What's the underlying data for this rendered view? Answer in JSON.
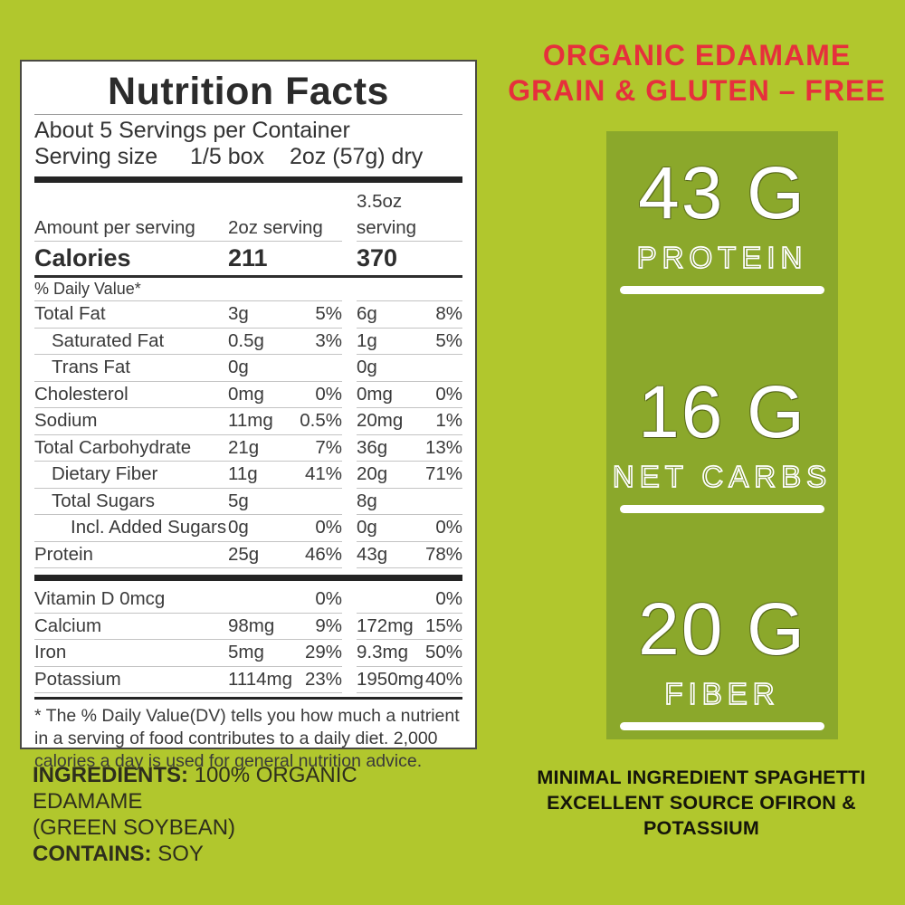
{
  "colors": {
    "bg": "#b1c72d",
    "box": "#8ba82b",
    "red": "#e6303c"
  },
  "nutrition_panel": {
    "title": "Nutrition Facts",
    "servings_line": "About 5 Servings per Container",
    "serving_size_label": "Serving size",
    "serving_size_qty": "1/5 box",
    "serving_size_weight": "2oz (57g) dry",
    "col_headers": [
      "Amount per serving",
      "2oz serving",
      "3.5oz serving"
    ],
    "calories": {
      "label": "Calories",
      "v1": "211",
      "v2": "370"
    },
    "daily_value_note": "% Daily Value*",
    "rows": [
      {
        "label": "Total Fat",
        "indent": 0,
        "cells": [
          "3g",
          "5%",
          "6g",
          "8%"
        ]
      },
      {
        "label": "Saturated Fat",
        "indent": 1,
        "cells": [
          "0.5g",
          "3%",
          "1g",
          "5%"
        ]
      },
      {
        "label": "Trans Fat",
        "indent": 1,
        "cells": [
          "0g",
          "",
          "0g",
          ""
        ]
      },
      {
        "label": "Cholesterol",
        "indent": 0,
        "cells": [
          "0mg",
          "0%",
          "0mg",
          "0%"
        ]
      },
      {
        "label": "Sodium",
        "indent": 0,
        "cells": [
          "11mg",
          "0.5%",
          "20mg",
          "1%"
        ]
      },
      {
        "label": "Total Carbohydrate",
        "indent": 0,
        "cells": [
          "21g",
          "7%",
          "36g",
          "13%"
        ]
      },
      {
        "label": "Dietary Fiber",
        "indent": 1,
        "cells": [
          "11g",
          "41%",
          "20g",
          "71%"
        ]
      },
      {
        "label": "Total Sugars",
        "indent": 1,
        "cells": [
          "5g",
          "",
          "8g",
          ""
        ]
      },
      {
        "label": "Incl. Added Sugars",
        "indent": 2,
        "cells": [
          "0g",
          "0%",
          "0g",
          "0%"
        ]
      },
      {
        "label": "Protein",
        "indent": 0,
        "cells": [
          "25g",
          "46%",
          "43g",
          "78%"
        ]
      }
    ],
    "mineral_rows": [
      {
        "label": "Vitamin D 0mcg",
        "indent": 0,
        "cells": [
          "",
          "0%",
          "",
          "0%"
        ]
      },
      {
        "label": "Calcium",
        "indent": 0,
        "cells": [
          "98mg",
          "9%",
          "172mg",
          "15%"
        ]
      },
      {
        "label": "Iron",
        "indent": 0,
        "cells": [
          "5mg",
          "29%",
          "9.3mg",
          "50%"
        ]
      },
      {
        "label": "Potassium",
        "indent": 0,
        "cells": [
          "1114mg",
          "23%",
          "1950mg",
          "40%"
        ]
      }
    ],
    "footnote": "* The % Daily Value(DV) tells you how much a nutrient in a serving of food contributes to a daily diet. 2,000 calories a day is used for general nutrition advice."
  },
  "ingredients": {
    "label": "INGREDIENTS:",
    "value": "100% ORGANIC EDAMAME",
    "value2": "(GREEN SOYBEAN)",
    "contains_label": "CONTAINS:",
    "contains_value": "SOY"
  },
  "right": {
    "headline_line1": "ORGANIC EDAMAME",
    "headline_line2": "GRAIN & GLUTEN – FREE",
    "stats": [
      {
        "value": "43 G",
        "label": "PROTEIN"
      },
      {
        "value": "16 G",
        "label": "NET CARBS"
      },
      {
        "value": "20 G",
        "label": "FIBER"
      }
    ],
    "footer_line1": "MINIMAL INGREDIENT SPAGHETTI",
    "footer_line2": "EXCELLENT SOURCE OFIRON & POTASSIUM"
  }
}
